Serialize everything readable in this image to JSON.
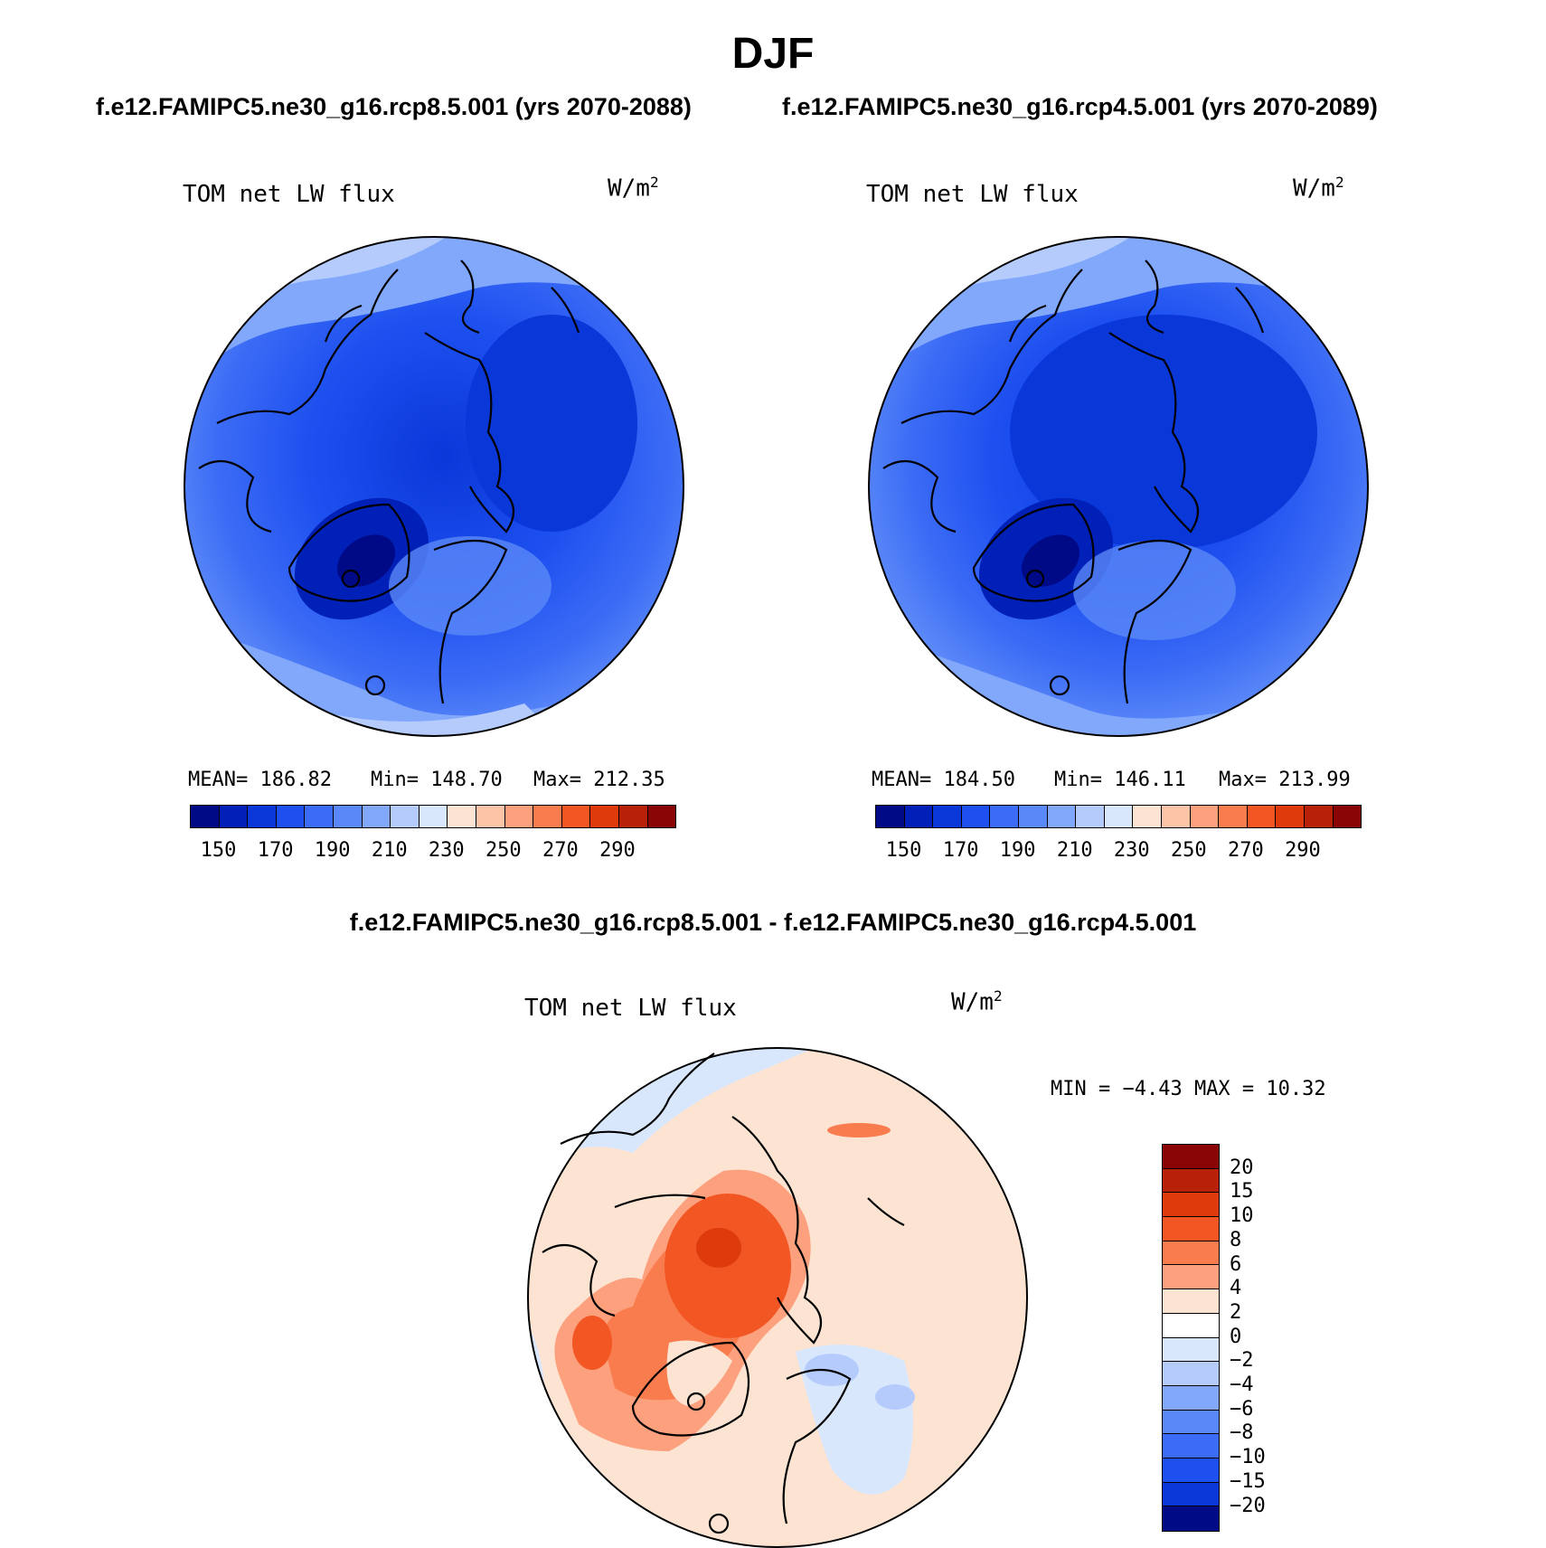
{
  "figure": {
    "season": "DJF",
    "case1_title": "f.e12.FAMIPC5.ne30_g16.rcp8.5.001 (yrs 2070-2088)",
    "case2_title": "f.e12.FAMIPC5.ne30_g16.rcp4.5.001 (yrs 2070-2089)",
    "diff_title": "f.e12.FAMIPC5.ne30_g16.rcp8.5.001 - f.e12.FAMIPC5.ne30_g16.rcp4.5.001"
  },
  "panel1": {
    "variable": "TOM net LW flux",
    "units": "W/m",
    "units_sup": "2",
    "mean": "MEAN= 186.82",
    "min": "Min= 148.70",
    "max": "Max= 212.35"
  },
  "panel2": {
    "variable": "TOM net LW flux",
    "units": "W/m",
    "units_sup": "2",
    "mean": "MEAN= 184.50",
    "min": "Min= 146.11",
    "max": "Max= 213.99"
  },
  "panel3": {
    "variable": "TOM net LW flux",
    "units": "W/m",
    "units_sup": "2",
    "minmax": "MIN =   −4.43 MAX =   10.32"
  },
  "colorbar_abs": {
    "ticks": [
      "150",
      "170",
      "190",
      "210",
      "230",
      "250",
      "270",
      "290"
    ],
    "colors": [
      "#000a87",
      "#0020b8",
      "#0a37d8",
      "#1e50f0",
      "#3c6cf5",
      "#5a88f8",
      "#82a8fb",
      "#b4cbfc",
      "#d9e7fd",
      "#fde4d2",
      "#fdc4a8",
      "#fca07e",
      "#f97c4e",
      "#f25622",
      "#de3a0c",
      "#b82008",
      "#8a0505"
    ]
  },
  "colorbar_diff": {
    "ticks": [
      "20",
      "15",
      "10",
      "8",
      "6",
      "4",
      "2",
      "0",
      "−2",
      "−4",
      "−6",
      "−8",
      "−10",
      "−15",
      "−20"
    ],
    "colors": [
      "#8a0505",
      "#b82008",
      "#de3a0c",
      "#f25622",
      "#f97c4e",
      "#fca07e",
      "#fde4d2",
      "#ffffff",
      "#d9e7fd",
      "#b4cbfc",
      "#82a8fb",
      "#5a88f8",
      "#3c6cf5",
      "#1e50f0",
      "#0a37d8",
      "#000a87"
    ]
  }
}
